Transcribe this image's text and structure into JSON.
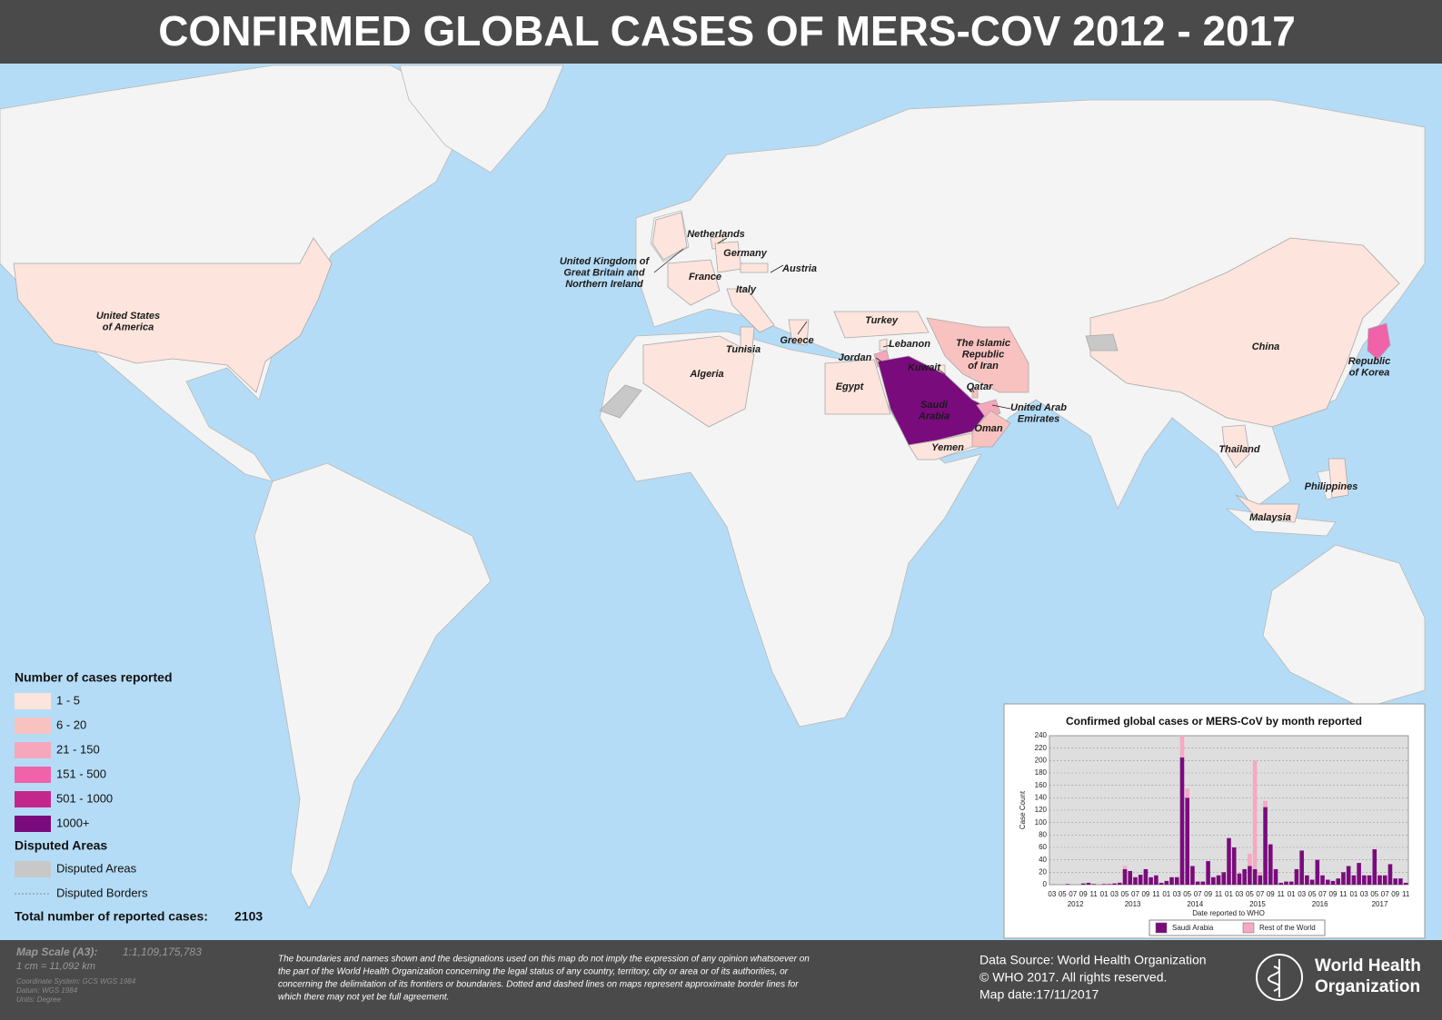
{
  "header": {
    "title": "CONFIRMED GLOBAL CASES OF MERS-COV 2012 - 2017"
  },
  "legend": {
    "title": "Number of cases reported",
    "items": [
      {
        "label": "1 - 5",
        "color": "#fde4dc"
      },
      {
        "label": "6 - 20",
        "color": "#f8c2c0"
      },
      {
        "label": "21 - 150",
        "color": "#f6a7bb"
      },
      {
        "label": "151 - 500",
        "color": "#f062aa"
      },
      {
        "label": "501 - 1000",
        "color": "#c4278c"
      },
      {
        "label": "1000+",
        "color": "#7a0b7c"
      }
    ],
    "disputed_title": "Disputed Areas",
    "disputed_area": {
      "label": "Disputed Areas",
      "color": "#c8c8c8"
    },
    "disputed_border": {
      "label": "Disputed Borders"
    },
    "total_label": "Total number of reported cases:",
    "total": 2103
  },
  "countries": [
    {
      "name": [
        "United States",
        "of America"
      ],
      "level": 0
    },
    {
      "name": [
        "United Kingdom of",
        "Great Britain and",
        "Northern Ireland"
      ],
      "level": 0
    },
    {
      "name": [
        "Netherlands"
      ],
      "level": 0
    },
    {
      "name": [
        "Germany"
      ],
      "level": 0
    },
    {
      "name": [
        "France"
      ],
      "level": 0
    },
    {
      "name": [
        "Austria"
      ],
      "level": 0
    },
    {
      "name": [
        "Italy"
      ],
      "level": 0
    },
    {
      "name": [
        "Greece"
      ],
      "level": 0
    },
    {
      "name": [
        "Turkey"
      ],
      "level": 0
    },
    {
      "name": [
        "Tunisia"
      ],
      "level": 0
    },
    {
      "name": [
        "Algeria"
      ],
      "level": 0
    },
    {
      "name": [
        "Egypt"
      ],
      "level": 0
    },
    {
      "name": [
        "Jordan"
      ],
      "level": 2
    },
    {
      "name": [
        "Lebanon"
      ],
      "level": 0
    },
    {
      "name": [
        "Kuwait"
      ],
      "level": 0
    },
    {
      "name": [
        "Qatar"
      ],
      "level": 1
    },
    {
      "name": [
        "Saudi",
        "Arabia"
      ],
      "level": 5
    },
    {
      "name": [
        "United Arab",
        "Emirates"
      ],
      "level": 2
    },
    {
      "name": [
        "Oman"
      ],
      "level": 1
    },
    {
      "name": [
        "Yemen"
      ],
      "level": 0
    },
    {
      "name": [
        "The Islamic",
        "Republic",
        "of Iran"
      ],
      "level": 1
    },
    {
      "name": [
        "China"
      ],
      "level": 0
    },
    {
      "name": [
        "Republic",
        "of Korea"
      ],
      "level": 3
    },
    {
      "name": [
        "Thailand"
      ],
      "level": 0
    },
    {
      "name": [
        "Philippines"
      ],
      "level": 0
    },
    {
      "name": [
        "Malaysia"
      ],
      "level": 0
    }
  ],
  "chart_data": {
    "type": "bar",
    "stacked": true,
    "title": "Confirmed global cases or MERS-CoV by month reported",
    "y_label": "Case Count",
    "x_label": "Date reported to WHO",
    "categories": [
      "03",
      null,
      "05",
      null,
      "07",
      null,
      "09",
      null,
      "11",
      null,
      "01",
      null,
      "03",
      null,
      "05",
      null,
      "07",
      null,
      "09",
      null,
      "11",
      null,
      "01",
      null,
      "03",
      null,
      "05",
      null,
      "07",
      null,
      "09",
      null,
      "11",
      null,
      "01",
      null,
      "03",
      null,
      "05",
      null,
      "07",
      null,
      "09",
      null,
      "11",
      null,
      "01",
      null,
      "03",
      null,
      "05",
      null,
      "07",
      null,
      "09",
      null,
      "11",
      null,
      "01",
      null,
      "03",
      null,
      "05",
      null,
      "07",
      null,
      "09",
      null,
      "11"
    ],
    "years": [
      "2012",
      "2013",
      "2014",
      "2015",
      "2016",
      "2017"
    ],
    "series": [
      {
        "name": "Saudi Arabia",
        "color": "#7a0b7c",
        "values": [
          0,
          0,
          0,
          1,
          0,
          0,
          2,
          3,
          1,
          0,
          1,
          1,
          2,
          3,
          25,
          22,
          12,
          16,
          25,
          12,
          15,
          3,
          6,
          12,
          12,
          205,
          140,
          30,
          5,
          5,
          38,
          12,
          15,
          20,
          75,
          60,
          18,
          25,
          30,
          25,
          15,
          125,
          65,
          25,
          3,
          5,
          5,
          25,
          55,
          15,
          8,
          40,
          15,
          8,
          6,
          10,
          20,
          30,
          15,
          35,
          15,
          15,
          57,
          15,
          15,
          33,
          10,
          10,
          3
        ]
      },
      {
        "name": "Rest of the World",
        "color": "#f7a8c4",
        "values": [
          0,
          0,
          0,
          0,
          0,
          0,
          0,
          0,
          0,
          0,
          1,
          1,
          0,
          1,
          5,
          0,
          0,
          0,
          0,
          0,
          0,
          0,
          0,
          1,
          1,
          35,
          15,
          0,
          0,
          0,
          0,
          0,
          0,
          0,
          0,
          0,
          0,
          0,
          20,
          175,
          5,
          10,
          0,
          0,
          0,
          0,
          0,
          0,
          0,
          0,
          0,
          0,
          0,
          0,
          0,
          0,
          0,
          0,
          0,
          0,
          0,
          0,
          0,
          0,
          0,
          0,
          0,
          0,
          0
        ]
      }
    ],
    "ylim": [
      0,
      240
    ],
    "yticks": [
      0,
      20,
      40,
      60,
      80,
      100,
      120,
      140,
      160,
      180,
      200,
      220,
      240
    ],
    "grid": true
  },
  "footer": {
    "scale_label": "Map Scale (A3):",
    "scale_ratio": "1:1,109,175,783",
    "scale_cm": "1 cm = 11,092 km",
    "coordinate": "Coordinate System: GCS WGS 1984",
    "datum": "Datum: WGS 1984",
    "units": "Units: Degree",
    "disclaimer": [
      "The boundaries and names shown and the designations used on this map do not imply the expression of any opinion whatsoever on",
      "the part of the World Health Organization concerning the legal status of any country, territory, city or area or of its authorities, or",
      "concerning the delimitation of its frontiers or boundaries. Dotted and dashed lines on maps represent approximate border lines for",
      "which there may not yet be full agreement."
    ],
    "source": [
      "Data Source: World Health Organization",
      "© WHO 2017. All rights reserved.",
      "Map date:17/11/2017"
    ],
    "logo": [
      "World Health",
      "Organization"
    ]
  }
}
